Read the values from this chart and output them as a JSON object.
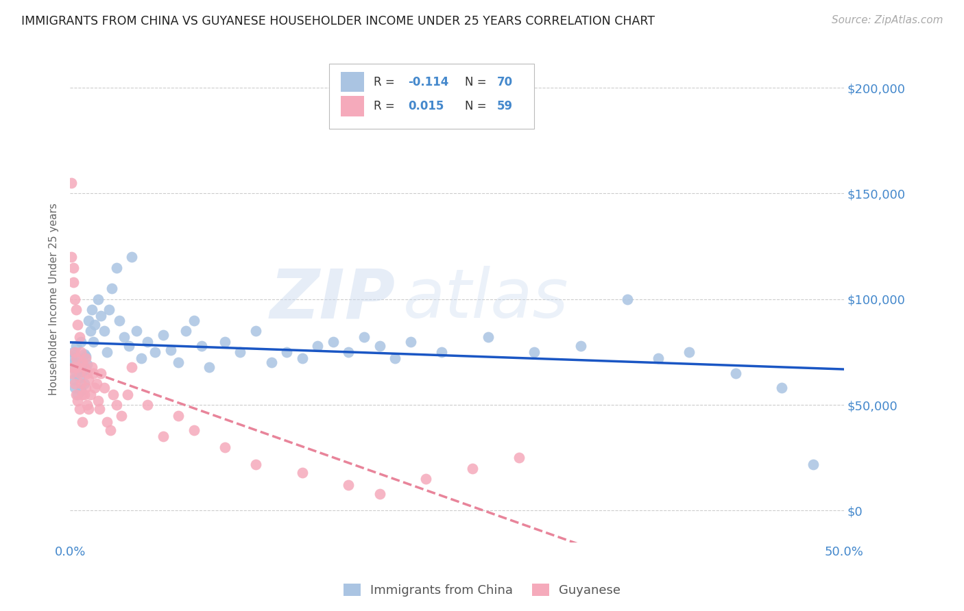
{
  "title": "IMMIGRANTS FROM CHINA VS GUYANESE HOUSEHOLDER INCOME UNDER 25 YEARS CORRELATION CHART",
  "source": "Source: ZipAtlas.com",
  "ylabel": "Householder Income Under 25 years",
  "xlim": [
    0.0,
    0.5
  ],
  "ylim": [
    -15000,
    215000
  ],
  "yticks": [
    0,
    50000,
    100000,
    150000,
    200000
  ],
  "ytick_labels": [
    "$0",
    "$50,000",
    "$100,000",
    "$150,000",
    "$200,000"
  ],
  "xticks": [
    0.0,
    0.1,
    0.2,
    0.3,
    0.4,
    0.5
  ],
  "xtick_labels": [
    "0.0%",
    "",
    "",
    "",
    "",
    "50.0%"
  ],
  "legend_labels": [
    "Immigrants from China",
    "Guyanese"
  ],
  "R_china": -0.114,
  "N_china": 70,
  "R_guyanese": 0.015,
  "N_guyanese": 59,
  "china_color": "#aac4e2",
  "guyanese_color": "#f5aabb",
  "china_line_color": "#1a56c4",
  "guyanese_line_color": "#e8849a",
  "watermark_zip": "ZIP",
  "watermark_atlas": "atlas",
  "background_color": "#ffffff",
  "grid_color": "#cccccc",
  "axis_label_color": "#4488cc",
  "title_color": "#222222",
  "china_x": [
    0.001,
    0.001,
    0.002,
    0.002,
    0.003,
    0.003,
    0.004,
    0.004,
    0.005,
    0.005,
    0.006,
    0.006,
    0.007,
    0.007,
    0.008,
    0.009,
    0.009,
    0.01,
    0.01,
    0.011,
    0.012,
    0.013,
    0.014,
    0.015,
    0.016,
    0.018,
    0.02,
    0.022,
    0.024,
    0.025,
    0.027,
    0.03,
    0.032,
    0.035,
    0.038,
    0.04,
    0.043,
    0.046,
    0.05,
    0.055,
    0.06,
    0.065,
    0.07,
    0.075,
    0.08,
    0.085,
    0.09,
    0.1,
    0.11,
    0.12,
    0.13,
    0.14,
    0.15,
    0.16,
    0.17,
    0.18,
    0.19,
    0.2,
    0.21,
    0.22,
    0.24,
    0.27,
    0.3,
    0.33,
    0.36,
    0.38,
    0.4,
    0.43,
    0.46,
    0.48
  ],
  "china_y": [
    73000,
    68000,
    75000,
    62000,
    70000,
    58000,
    65000,
    78000,
    55000,
    72000,
    63000,
    69000,
    80000,
    57000,
    66000,
    74000,
    60000,
    67000,
    73000,
    69000,
    90000,
    85000,
    95000,
    80000,
    88000,
    100000,
    92000,
    85000,
    75000,
    95000,
    105000,
    115000,
    90000,
    82000,
    78000,
    120000,
    85000,
    72000,
    80000,
    75000,
    83000,
    76000,
    70000,
    85000,
    90000,
    78000,
    68000,
    80000,
    75000,
    85000,
    70000,
    75000,
    72000,
    78000,
    80000,
    75000,
    82000,
    78000,
    72000,
    80000,
    75000,
    82000,
    75000,
    78000,
    100000,
    72000,
    75000,
    65000,
    58000,
    22000
  ],
  "guyanese_x": [
    0.001,
    0.001,
    0.001,
    0.002,
    0.002,
    0.002,
    0.003,
    0.003,
    0.003,
    0.004,
    0.004,
    0.004,
    0.005,
    0.005,
    0.005,
    0.006,
    0.006,
    0.006,
    0.007,
    0.007,
    0.008,
    0.008,
    0.008,
    0.009,
    0.009,
    0.01,
    0.01,
    0.011,
    0.011,
    0.012,
    0.012,
    0.013,
    0.014,
    0.015,
    0.016,
    0.017,
    0.018,
    0.019,
    0.02,
    0.022,
    0.024,
    0.026,
    0.028,
    0.03,
    0.033,
    0.037,
    0.04,
    0.05,
    0.06,
    0.07,
    0.08,
    0.1,
    0.12,
    0.15,
    0.18,
    0.2,
    0.23,
    0.26,
    0.29
  ],
  "guyanese_y": [
    155000,
    120000,
    65000,
    115000,
    108000,
    68000,
    100000,
    75000,
    60000,
    95000,
    72000,
    55000,
    88000,
    68000,
    52000,
    82000,
    65000,
    48000,
    75000,
    60000,
    70000,
    55000,
    42000,
    68000,
    55000,
    72000,
    58000,
    65000,
    50000,
    62000,
    48000,
    55000,
    68000,
    65000,
    58000,
    60000,
    52000,
    48000,
    65000,
    58000,
    42000,
    38000,
    55000,
    50000,
    45000,
    55000,
    68000,
    50000,
    35000,
    45000,
    38000,
    30000,
    22000,
    18000,
    12000,
    8000,
    15000,
    20000,
    25000
  ]
}
